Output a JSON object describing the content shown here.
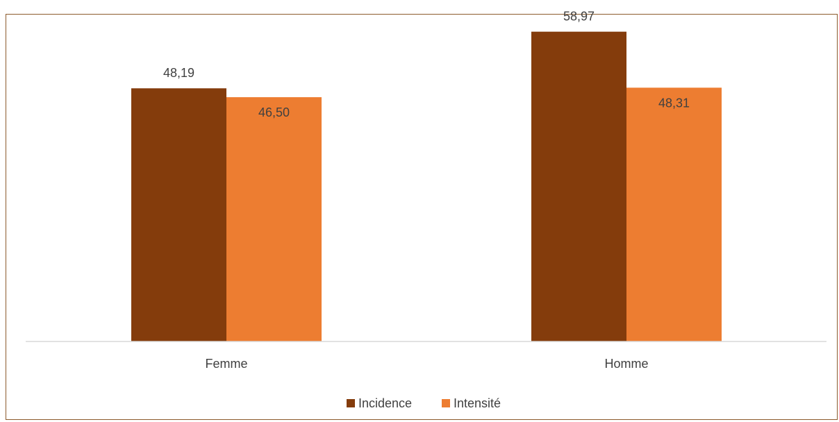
{
  "chart_data": {
    "type": "bar",
    "title": "",
    "categories": [
      "Femme",
      "Homme"
    ],
    "series": [
      {
        "name": "Incidence",
        "values": [
          48.19,
          58.97
        ],
        "labels": [
          "48,19",
          "58,97"
        ],
        "color": "#843c0c"
      },
      {
        "name": "Intensité",
        "values": [
          46.5,
          48.31
        ],
        "labels": [
          "46,50",
          "48,31"
        ],
        "color": "#ed7d31"
      }
    ],
    "ylim": [
      0,
      65
    ],
    "grid": false,
    "legend_position": "bottom",
    "data_label_colors": {
      "incidence": "#404040",
      "intensite": "#404040"
    }
  }
}
